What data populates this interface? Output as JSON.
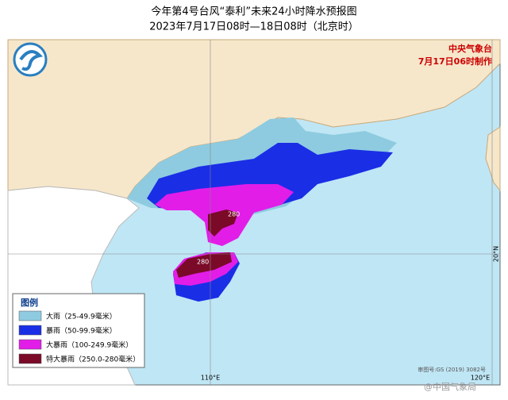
{
  "header": {
    "title": "今年第4号台风“泰利”未来24小时降水预报图",
    "subtitle": "2023年7月17日08时—18日08时（北京时）"
  },
  "issuer": {
    "agency": "中央气象台",
    "made": "7月17日06时制作"
  },
  "legend": {
    "title": "图例",
    "items": [
      {
        "label": "大雨（25-49.9毫米）",
        "color": "#8ecbe0"
      },
      {
        "label": "暴雨（50-99.9毫米）",
        "color": "#1a2ee6"
      },
      {
        "label": "大暴雨（100-249.9毫米）",
        "color": "#e21de8"
      },
      {
        "label": "特大暴雨（250.0-280毫米）",
        "color": "#7a0a28"
      }
    ]
  },
  "map": {
    "max_labels": [
      "280",
      "280"
    ],
    "lon_labels": [
      "110°E",
      "120°E"
    ],
    "lat_labels": [
      "20°N"
    ],
    "review_number": "审图号:GS (2019) 3082号",
    "watermark": "@中国气象局"
  }
}
